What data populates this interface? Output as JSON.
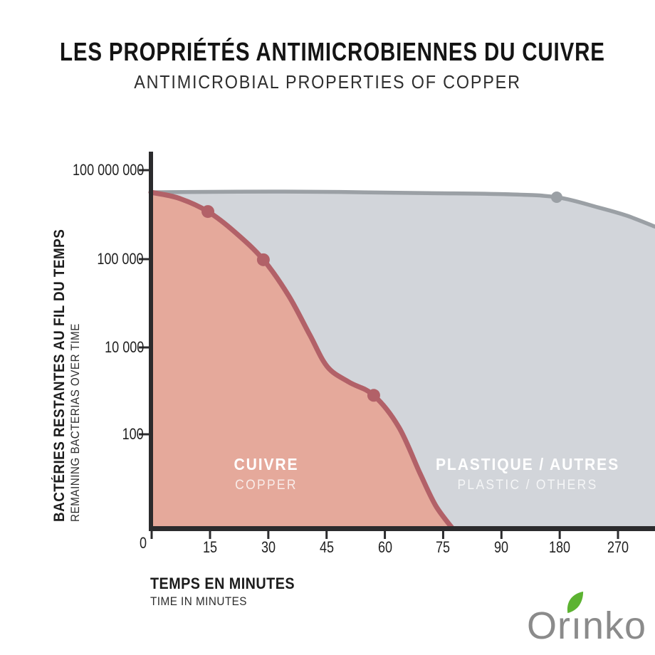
{
  "header": {
    "title": "LES PROPRIÉTÉS ANTIMICROBIENNES DU CUIVRE",
    "subtitle": "ANTIMICROBIAL PROPERTIES OF COPPER"
  },
  "axes": {
    "y_label_fr": "BACTÉRIES RESTANTES AU FIL DU TEMPS",
    "y_label_en": "REMAINING BACTERIAS OVER TIME",
    "x_label_fr": "TEMPS EN MINUTES",
    "x_label_en": "TIME IN MINUTES"
  },
  "area_labels": {
    "copper_fr": "CUIVRE",
    "copper_en": "COPPER",
    "plastic_fr": "PLASTIQUE / AUTRES",
    "plastic_en": "PLASTIC / OTHERS"
  },
  "logo": {
    "name": "Orinko",
    "part1": "Or",
    "part2": "ı",
    "part3": "nko",
    "text_color": "#8b8b8b",
    "leaf_color": "#5cb331"
  },
  "colors": {
    "background": "#ffffff",
    "copper_fill": "#e5a99b",
    "copper_stroke": "#b26168",
    "plastic_fill": "#d2d5da",
    "plastic_stroke": "#9ba0a5",
    "axis": "#2b2b2d",
    "tick_text": "#1f1f1f"
  },
  "chart_data": {
    "type": "area",
    "title": "LES PROPRIÉTÉS ANTIMICROBIENNES DU CUIVRE",
    "subtitle": "ANTIMICROBIAL PROPERTIES OF COPPER",
    "xlabel": "TEMPS EN MINUTES (TIME IN MINUTES)",
    "ylabel": "BACTÉRIES RESTANTES AU FIL DU TEMPS (REMAINING BACTERIAS OVER TIME)",
    "x_ticks": [
      "0",
      "15",
      "30",
      "45",
      "60",
      "75",
      "90",
      "180",
      "270"
    ],
    "y_ticks": [
      "100 000 000",
      "100 000",
      "10 000",
      "100",
      "0"
    ],
    "y_scale": "stylized logarithmic",
    "x_scale": "non-linear: equal tick spacing with jumps 90 to 180 to 270",
    "grid": false,
    "legend_position": "labels inside shaded areas",
    "series": [
      {
        "name": "CUIVRE / COPPER",
        "estimated_points": [
          {
            "minutes": 0,
            "bacteria": 50000000
          },
          {
            "minutes": 15,
            "bacteria": 5000000
          },
          {
            "minutes": 30,
            "bacteria": 100000
          },
          {
            "minutes": 55,
            "bacteria": 1000
          },
          {
            "minutes": 78,
            "bacteria": 0
          }
        ],
        "markers_minutes": [
          15,
          30,
          55
        ],
        "shape": [
          [
            0,
            0.108
          ],
          [
            0.054,
            0.123
          ],
          [
            0.113,
            0.159
          ],
          [
            0.167,
            0.214
          ],
          [
            0.223,
            0.287
          ],
          [
            0.273,
            0.382
          ],
          [
            0.315,
            0.486
          ],
          [
            0.35,
            0.571
          ],
          [
            0.393,
            0.612
          ],
          [
            0.442,
            0.647
          ],
          [
            0.492,
            0.732
          ],
          [
            0.534,
            0.855
          ],
          [
            0.565,
            0.94
          ],
          [
            0.598,
            1.0
          ]
        ],
        "marker_shape": [
          [
            0.113,
            0.159
          ],
          [
            0.223,
            0.287
          ],
          [
            0.442,
            0.647
          ]
        ]
      },
      {
        "name": "PLASTIQUE / AUTRES — PLASTIC / OTHERS",
        "estimated_points": [
          {
            "minutes": 0,
            "bacteria": 50000000
          },
          {
            "minutes": 90,
            "bacteria": 50000000
          },
          {
            "minutes": 180,
            "bacteria": 45000000
          },
          {
            "minutes": 270,
            "bacteria": 10000000
          }
        ],
        "markers_minutes": [
          180
        ],
        "shape": [
          [
            0,
            0.108
          ],
          [
            0.266,
            0.106
          ],
          [
            0.548,
            0.11
          ],
          [
            0.703,
            0.113
          ],
          [
            0.805,
            0.121
          ],
          [
            0.887,
            0.148
          ],
          [
            0.944,
            0.17
          ],
          [
            1.0,
            0.199
          ]
        ],
        "marker_shape": [
          [
            0.805,
            0.121
          ]
        ]
      }
    ]
  }
}
